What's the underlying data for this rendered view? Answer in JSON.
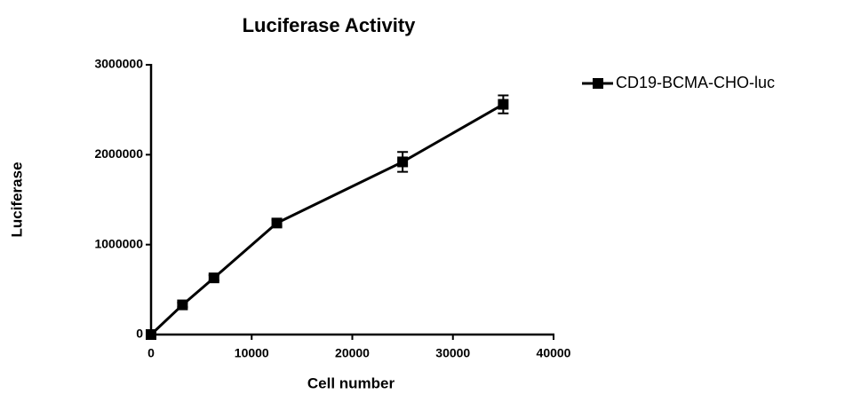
{
  "chart_data": {
    "type": "line",
    "title": "Luciferase Activity",
    "x_label": "Cell number",
    "y_label": "Luciferase",
    "x": [
      0,
      3125,
      6250,
      12500,
      25000,
      35000
    ],
    "series": [
      {
        "name": "CD19-BCMA-CHO-luc",
        "color": "#000000",
        "values": [
          0,
          330000,
          630000,
          1240000,
          1920000,
          2560000
        ],
        "errors": [
          20000,
          25000,
          30000,
          35000,
          110000,
          100000
        ]
      }
    ],
    "xlim": [
      0,
      40000
    ],
    "xticks": [
      0,
      10000,
      20000,
      30000,
      40000
    ],
    "ylim": [
      0,
      3000000
    ],
    "yticks": [
      0,
      1000000,
      2000000,
      3000000
    ],
    "legend": "right",
    "grid": false
  }
}
